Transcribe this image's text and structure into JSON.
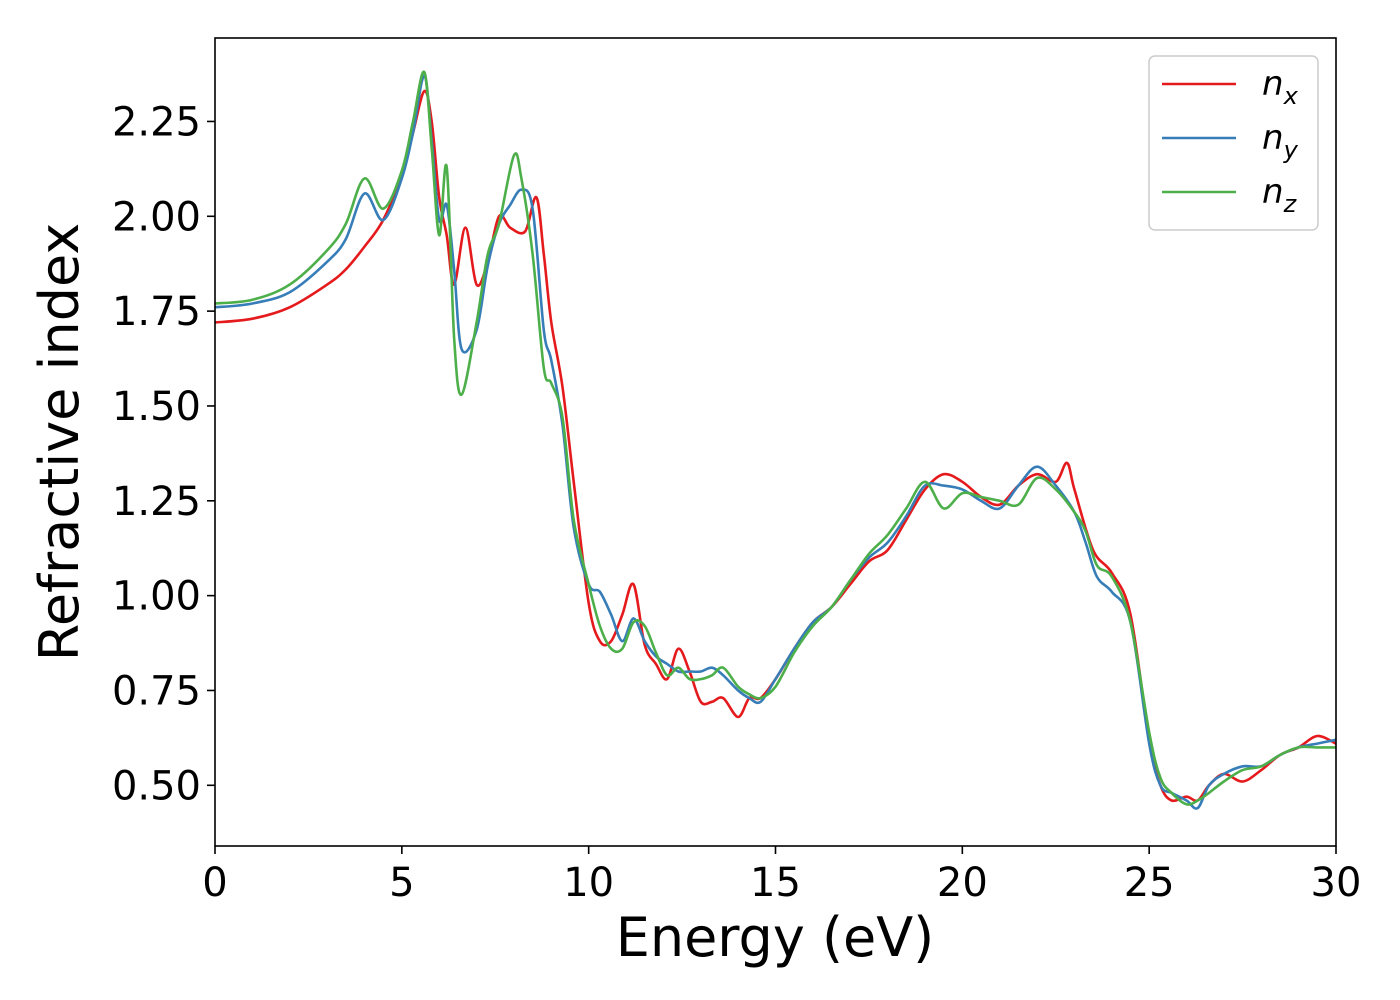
{
  "chart_data": {
    "type": "line",
    "xlabel": "Energy (eV)",
    "ylabel": "Refractive index",
    "xlim": [
      0,
      30
    ],
    "ylim": [
      0.34,
      2.47
    ],
    "xticks": [
      0,
      5,
      10,
      15,
      20,
      25,
      30
    ],
    "yticks": [
      0.5,
      0.75,
      1.0,
      1.25,
      1.5,
      1.75,
      2.0,
      2.25
    ],
    "grid": false,
    "legend_position": "top-right",
    "series": [
      {
        "name": "n",
        "subscript": "x",
        "color": "#e41a1c",
        "x": [
          0,
          1,
          2,
          3,
          3.5,
          4,
          4.5,
          5,
          5.3,
          5.6,
          5.8,
          6,
          6.2,
          6.4,
          6.7,
          7,
          7.3,
          7.6,
          7.9,
          8.3,
          8.6,
          8.8,
          9,
          9.3,
          9.6,
          10,
          10.3,
          10.6,
          10.9,
          11.2,
          11.5,
          11.8,
          12.1,
          12.4,
          12.7,
          13,
          13.3,
          13.6,
          14,
          14.3,
          14.6,
          15,
          15.5,
          16,
          16.5,
          17,
          17.5,
          18,
          18.5,
          19,
          19.5,
          20,
          20.5,
          21,
          21.5,
          22,
          22.5,
          22.8,
          23,
          23.5,
          24,
          24.5,
          25,
          25.3,
          25.6,
          26,
          26.3,
          26.6,
          27,
          27.5,
          28,
          28.5,
          29,
          29.5,
          30
        ],
        "y": [
          1.72,
          1.73,
          1.76,
          1.82,
          1.86,
          1.92,
          1.99,
          2.11,
          2.22,
          2.33,
          2.25,
          2.05,
          1.95,
          1.82,
          1.97,
          1.82,
          1.88,
          2.0,
          1.97,
          1.96,
          2.05,
          1.9,
          1.72,
          1.55,
          1.3,
          0.98,
          0.88,
          0.88,
          0.95,
          1.03,
          0.87,
          0.82,
          0.78,
          0.86,
          0.8,
          0.72,
          0.72,
          0.73,
          0.68,
          0.73,
          0.73,
          0.78,
          0.86,
          0.93,
          0.97,
          1.03,
          1.09,
          1.12,
          1.2,
          1.28,
          1.32,
          1.3,
          1.26,
          1.24,
          1.29,
          1.32,
          1.3,
          1.35,
          1.28,
          1.12,
          1.06,
          0.95,
          0.62,
          0.5,
          0.46,
          0.47,
          0.46,
          0.5,
          0.53,
          0.51,
          0.54,
          0.58,
          0.6,
          0.63,
          0.61
        ]
      },
      {
        "name": "n",
        "subscript": "y",
        "color": "#377eb8",
        "x": [
          0,
          1,
          2,
          3,
          3.5,
          4,
          4.5,
          5,
          5.3,
          5.6,
          5.8,
          6,
          6.2,
          6.4,
          6.6,
          7,
          7.3,
          7.6,
          7.9,
          8.2,
          8.5,
          8.8,
          9,
          9.3,
          9.6,
          10,
          10.3,
          10.6,
          10.9,
          11.2,
          11.5,
          11.8,
          12.1,
          12.4,
          12.7,
          13,
          13.3,
          13.6,
          14,
          14.3,
          14.6,
          15,
          15.5,
          16,
          16.5,
          17,
          17.5,
          18,
          18.5,
          19,
          19.5,
          20,
          20.5,
          21,
          21.5,
          22,
          22.5,
          23,
          23.3,
          23.6,
          24,
          24.5,
          25,
          25.3,
          25.6,
          26,
          26.3,
          26.6,
          27,
          27.5,
          28,
          28.5,
          29,
          29.5,
          30
        ],
        "y": [
          1.76,
          1.77,
          1.8,
          1.88,
          1.94,
          2.06,
          1.99,
          2.1,
          2.22,
          2.37,
          2.2,
          1.99,
          2.03,
          1.86,
          1.65,
          1.7,
          1.87,
          1.98,
          2.03,
          2.07,
          2.02,
          1.7,
          1.62,
          1.45,
          1.18,
          1.03,
          1.01,
          0.95,
          0.88,
          0.94,
          0.88,
          0.84,
          0.82,
          0.8,
          0.8,
          0.8,
          0.81,
          0.79,
          0.75,
          0.73,
          0.72,
          0.78,
          0.86,
          0.93,
          0.97,
          1.04,
          1.1,
          1.14,
          1.21,
          1.29,
          1.29,
          1.28,
          1.25,
          1.23,
          1.29,
          1.34,
          1.29,
          1.22,
          1.14,
          1.05,
          1.01,
          0.93,
          0.61,
          0.5,
          0.48,
          0.46,
          0.44,
          0.5,
          0.53,
          0.55,
          0.55,
          0.58,
          0.6,
          0.61,
          0.62
        ]
      },
      {
        "name": "n",
        "subscript": "z",
        "color": "#4daf4a",
        "x": [
          0,
          1,
          2,
          3,
          3.5,
          4,
          4.5,
          5,
          5.3,
          5.6,
          5.8,
          6,
          6.2,
          6.4,
          6.6,
          7,
          7.3,
          7.6,
          8,
          8.2,
          8.5,
          8.8,
          9,
          9.3,
          9.6,
          10,
          10.3,
          10.6,
          10.9,
          11.2,
          11.5,
          11.8,
          12.1,
          12.4,
          12.7,
          13,
          13.3,
          13.6,
          14,
          14.3,
          14.6,
          15,
          15.5,
          16,
          16.5,
          17,
          17.5,
          18,
          18.5,
          19,
          19.5,
          20,
          20.5,
          21,
          21.5,
          22,
          22.5,
          23,
          23.3,
          23.6,
          24,
          24.5,
          25,
          25.3,
          25.6,
          26,
          26.3,
          26.6,
          27,
          27.5,
          28,
          28.5,
          29,
          29.5,
          30
        ],
        "y": [
          1.77,
          1.78,
          1.82,
          1.91,
          1.98,
          2.1,
          2.02,
          2.12,
          2.25,
          2.38,
          2.18,
          1.95,
          2.13,
          1.68,
          1.53,
          1.72,
          1.9,
          1.98,
          2.16,
          2.1,
          1.9,
          1.6,
          1.56,
          1.47,
          1.2,
          1.03,
          0.92,
          0.86,
          0.86,
          0.93,
          0.92,
          0.85,
          0.79,
          0.81,
          0.78,
          0.78,
          0.79,
          0.81,
          0.76,
          0.74,
          0.73,
          0.76,
          0.85,
          0.92,
          0.97,
          1.04,
          1.11,
          1.16,
          1.23,
          1.3,
          1.23,
          1.27,
          1.26,
          1.25,
          1.24,
          1.31,
          1.28,
          1.22,
          1.17,
          1.08,
          1.05,
          0.93,
          0.64,
          0.52,
          0.48,
          0.45,
          0.46,
          0.48,
          0.51,
          0.54,
          0.55,
          0.58,
          0.6,
          0.6,
          0.6
        ]
      }
    ]
  }
}
